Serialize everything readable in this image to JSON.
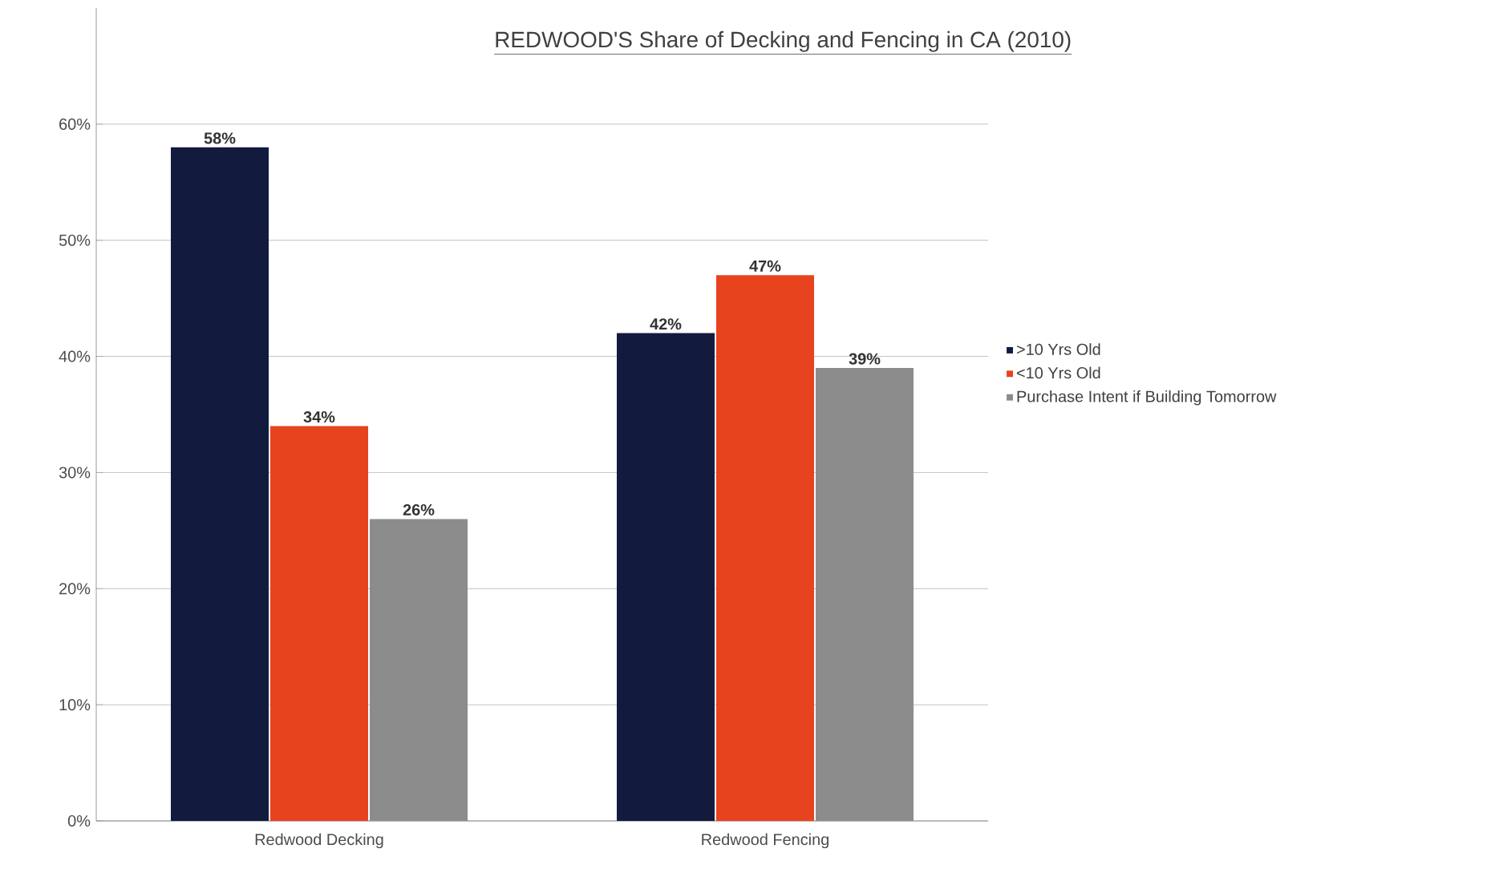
{
  "chart_data": {
    "type": "bar",
    "title": "REDWOOD'S Share of Decking and Fencing in CA (2010)",
    "categories": [
      "Redwood Decking",
      "Redwood Fencing"
    ],
    "series": [
      {
        "name": ">10 Yrs Old",
        "color": "#121a3e",
        "values": [
          58,
          42
        ],
        "value_labels": [
          "58%",
          "42%"
        ]
      },
      {
        "name": "<10 Yrs Old",
        "color": "#e8431f",
        "values": [
          34,
          47
        ],
        "value_labels": [
          "34%",
          "47%"
        ]
      },
      {
        "name": "Purchase Intent if Building Tomorrow",
        "color": "#8c8c8c",
        "values": [
          26,
          39
        ],
        "value_labels": [
          "26%",
          "39%"
        ]
      }
    ],
    "ylim": [
      0,
      70
    ],
    "yticks": [
      {
        "value": 0,
        "label": "0%"
      },
      {
        "value": 10,
        "label": "10%"
      },
      {
        "value": 20,
        "label": "20%"
      },
      {
        "value": 30,
        "label": "30%"
      },
      {
        "value": 40,
        "label": "40%"
      },
      {
        "value": 50,
        "label": "50%"
      },
      {
        "value": 60,
        "label": "60%"
      }
    ],
    "grid": "y",
    "legend": "right"
  }
}
